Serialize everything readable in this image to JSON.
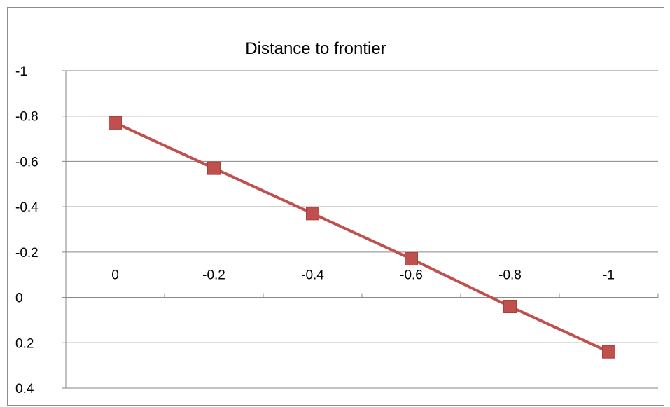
{
  "chart_data": {
    "type": "line",
    "title": "Distance to frontier",
    "xlabel": "",
    "ylabel": "",
    "y_axis_reversed": true,
    "ylim": [
      -1,
      0.4
    ],
    "y_ticks": [
      "-1",
      "-0.8",
      "-0.6",
      "-0.4",
      "-0.2",
      "0",
      "0.2",
      "0.4"
    ],
    "x_ticks": [
      "0",
      "-0.2",
      "-0.4",
      "-0.6",
      "-0.8",
      "-1"
    ],
    "x_axis_crosses_at": 0,
    "grid": true,
    "legend": "none",
    "series": [
      {
        "color": "#C0504D",
        "marker": "square",
        "x": [
          "0",
          "-0.2",
          "-0.4",
          "-0.6",
          "-0.8",
          "-1"
        ],
        "values": [
          -0.77,
          -0.57,
          -0.37,
          -0.17,
          0.04,
          0.24
        ]
      }
    ]
  }
}
